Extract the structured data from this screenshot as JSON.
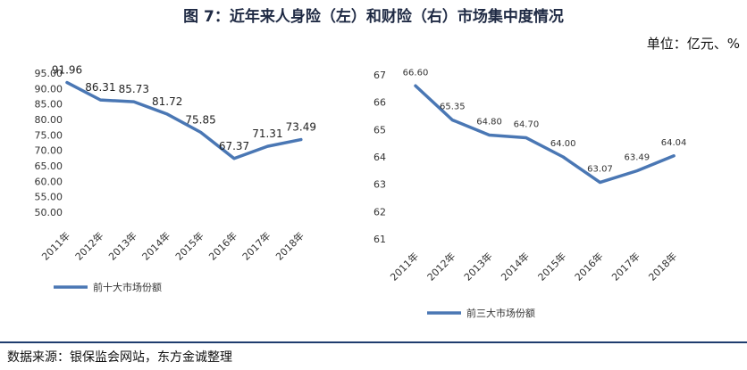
{
  "title": "图 7：近年来人身险（左）和财险（右）市场集中度情况",
  "unit": "单位：亿元、%",
  "source": "数据来源：银保监会网站，东方金诚整理",
  "colors": {
    "line": "#4a77b4",
    "text": "#222222"
  },
  "chart_data": [
    {
      "type": "line",
      "title": "",
      "categories": [
        "2011年",
        "2012年",
        "2013年",
        "2014年",
        "2015年",
        "2016年",
        "2017年",
        "2018年"
      ],
      "series": [
        {
          "name": "前十大市场份额",
          "values": [
            91.96,
            86.31,
            85.73,
            81.72,
            75.85,
            67.37,
            71.31,
            73.49
          ]
        }
      ],
      "ylim": [
        50,
        95
      ],
      "yticks": [
        "50.00",
        "55.00",
        "60.00",
        "65.00",
        "70.00",
        "75.00",
        "80.00",
        "85.00",
        "90.00",
        "95.00"
      ],
      "data_labels": [
        "91.96",
        "86.31",
        "85.73",
        "81.72",
        "75.85",
        "67.37",
        "71.31",
        "73.49"
      ],
      "xlabel": "",
      "ylabel": "",
      "grid": false,
      "legend": "bottom-left"
    },
    {
      "type": "line",
      "title": "",
      "categories": [
        "2011年",
        "2012年",
        "2013年",
        "2014年",
        "2015年",
        "2016年",
        "2017年",
        "2018年"
      ],
      "series": [
        {
          "name": "前三大市场份额",
          "values": [
            66.6,
            65.35,
            64.8,
            64.7,
            64.0,
            63.07,
            63.49,
            64.04
          ]
        }
      ],
      "ylim": [
        61,
        67
      ],
      "yticks": [
        "61",
        "62",
        "63",
        "64",
        "65",
        "66",
        "67"
      ],
      "data_labels": [
        "66.60",
        "65.35",
        "64.80",
        "64.70",
        "64.00",
        "63.07",
        "63.49",
        "64.04"
      ],
      "xlabel": "",
      "ylabel": "",
      "grid": false,
      "legend": "bottom"
    }
  ]
}
